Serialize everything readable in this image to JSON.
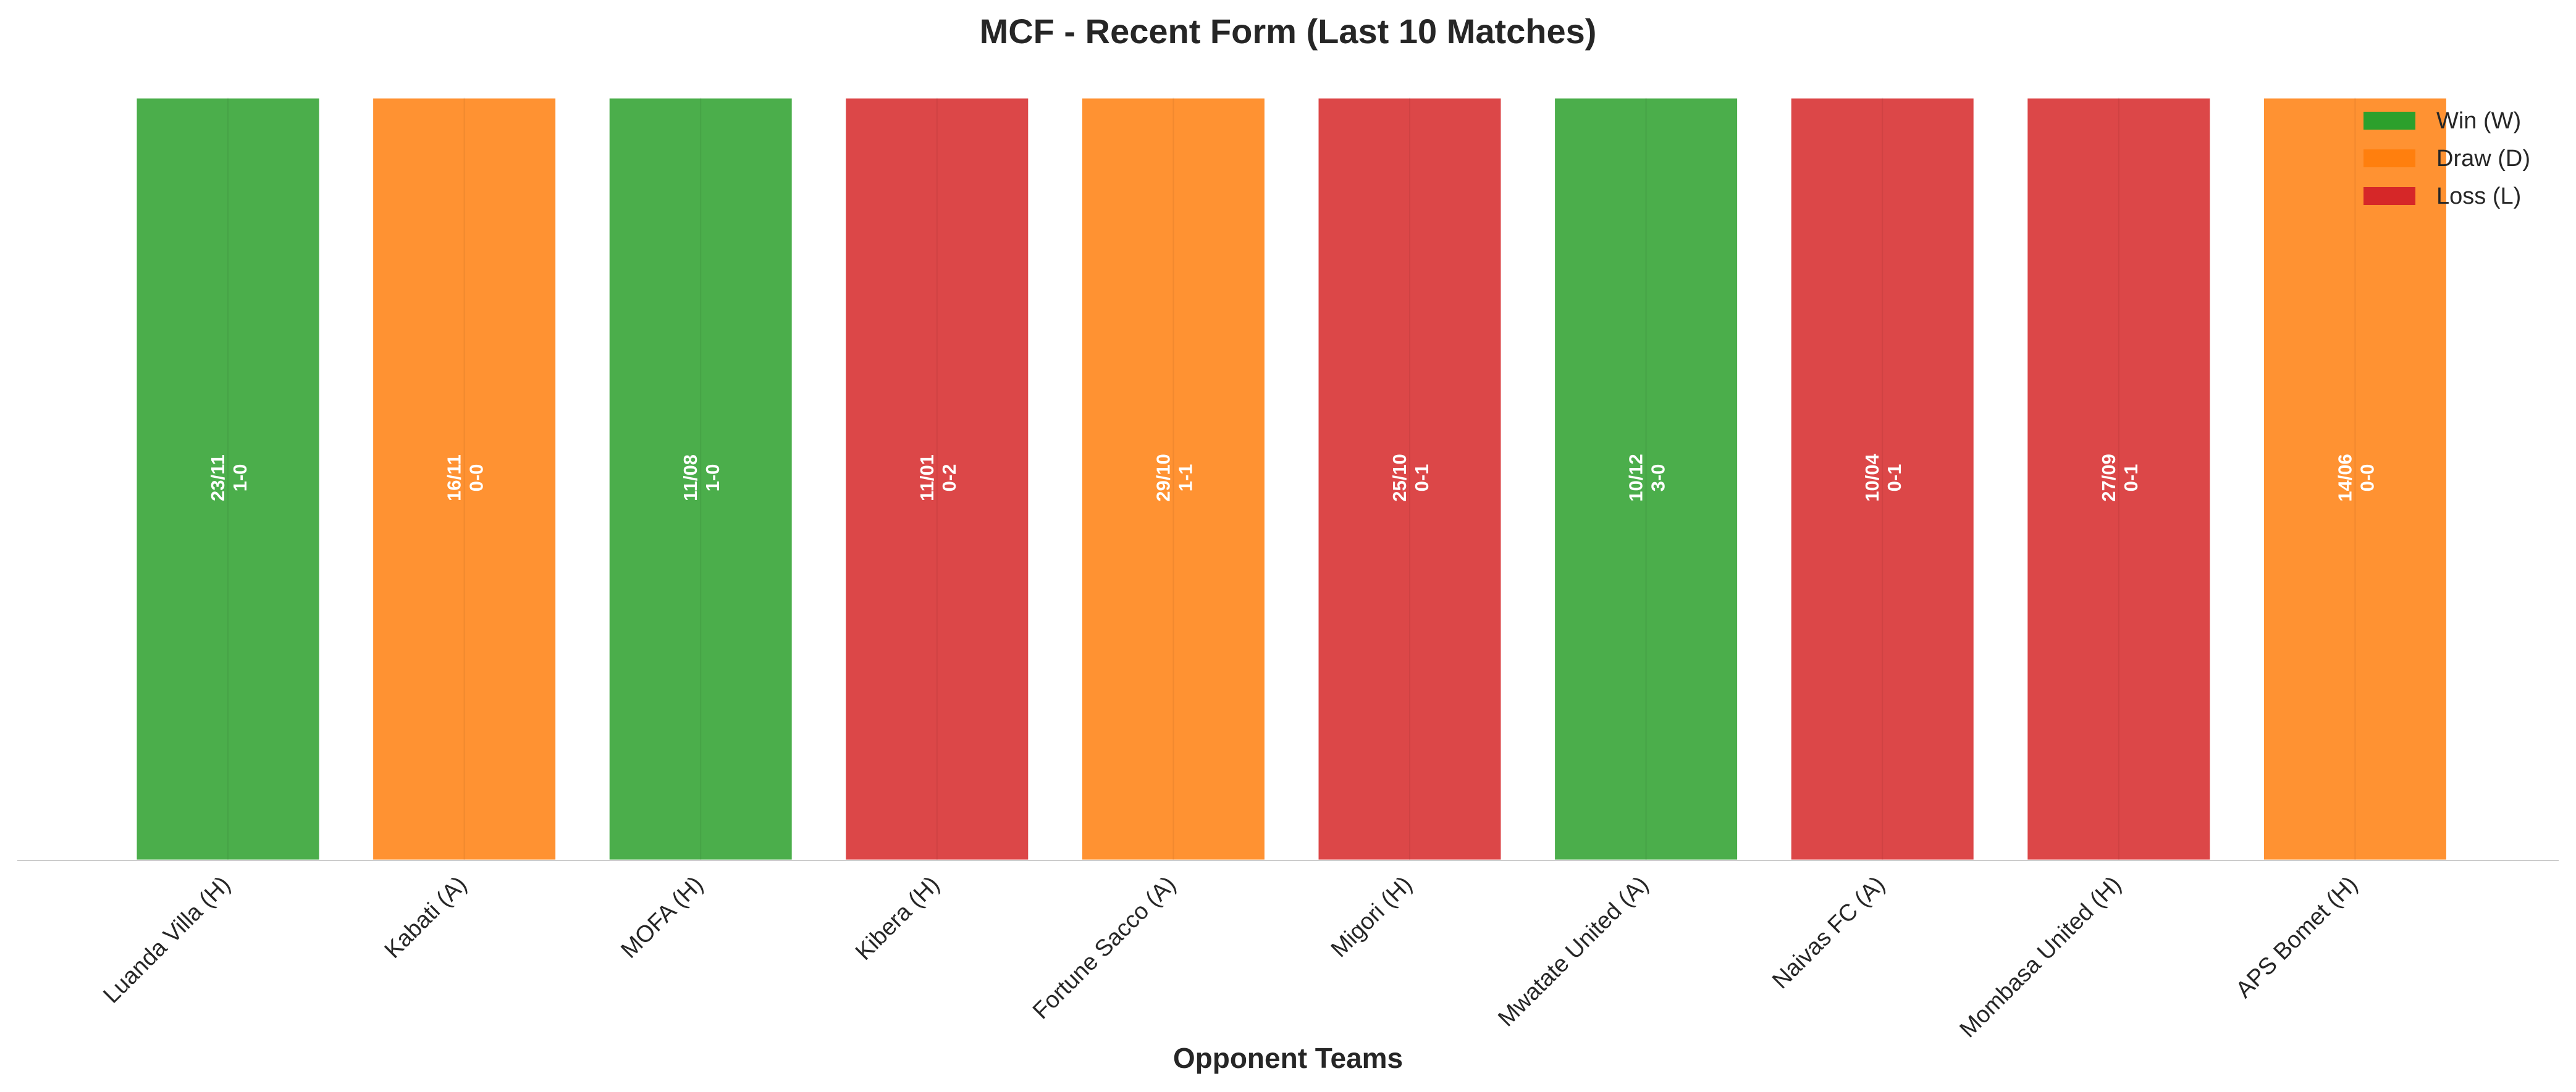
{
  "chart_data": {
    "type": "bar",
    "title": "MCF - Recent Form (Last 10 Matches)",
    "xlabel": "Opponent Teams",
    "ylabel": "",
    "categories": [
      "Luanda Villa (H)",
      "Kabati (A)",
      "MOFA (H)",
      "Kibera (H)",
      "Fortune Sacco (A)",
      "Migori (H)",
      "Mwatate United (A)",
      "Naivas FC (A)",
      "Mombasa United (H)",
      "APS Bomet (H)"
    ],
    "values": [
      1,
      1,
      1,
      1,
      1,
      1,
      1,
      1,
      1,
      1
    ],
    "results": [
      "W",
      "D",
      "W",
      "L",
      "D",
      "L",
      "W",
      "L",
      "L",
      "D"
    ],
    "dates": [
      "23/11",
      "16/11",
      "11/08",
      "11/01",
      "29/10",
      "25/10",
      "10/12",
      "10/04",
      "27/09",
      "14/06"
    ],
    "scores": [
      "1-0",
      "0-0",
      "1-0",
      "0-2",
      "1-1",
      "0-1",
      "3-0",
      "0-1",
      "0-1",
      "0-0"
    ],
    "ylim": [
      0,
      1
    ],
    "grid": false,
    "legend_position": "top-right",
    "legend": [
      {
        "key": "W",
        "label": "Win (W)",
        "color": "#2ca02c"
      },
      {
        "key": "D",
        "label": "Draw (D)",
        "color": "#ff7f0e"
      },
      {
        "key": "L",
        "label": "Loss (L)",
        "color": "#d62728"
      }
    ]
  }
}
